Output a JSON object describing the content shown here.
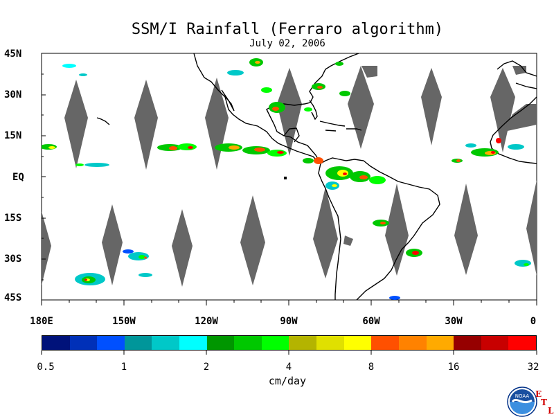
{
  "title": "SSM/I Rainfall (Ferraro algorithm)",
  "date": "July 02, 2006",
  "lat_labels": [
    "45N",
    "30N",
    "15N",
    "EQ",
    "15S",
    "30S",
    "45S"
  ],
  "lon_labels": [
    "180E",
    "150W",
    "120W",
    "90W",
    "60W",
    "30W",
    "0"
  ],
  "colorbar": {
    "ticks": [
      "0.5",
      "1",
      "2",
      "4",
      "8",
      "16",
      "32"
    ],
    "units": "cm/day",
    "colors": [
      "#00127a",
      "#0030b8",
      "#0050ff",
      "#00969a",
      "#00c8c8",
      "#00ffff",
      "#009600",
      "#00c800",
      "#00ff00",
      "#b4b400",
      "#e0e000",
      "#ffff00",
      "#ff5000",
      "#ff8200",
      "#ffaa00",
      "#960000",
      "#c80000",
      "#ff0000"
    ]
  },
  "logo": {
    "text": "NOAA",
    "etl_letters": [
      "E",
      "T",
      "L"
    ]
  },
  "map": {
    "lat_range": [
      -45,
      45
    ],
    "lon_range": [
      -180,
      0
    ],
    "swath_gap_color": "#666666",
    "land_outline_color": "#000000"
  }
}
